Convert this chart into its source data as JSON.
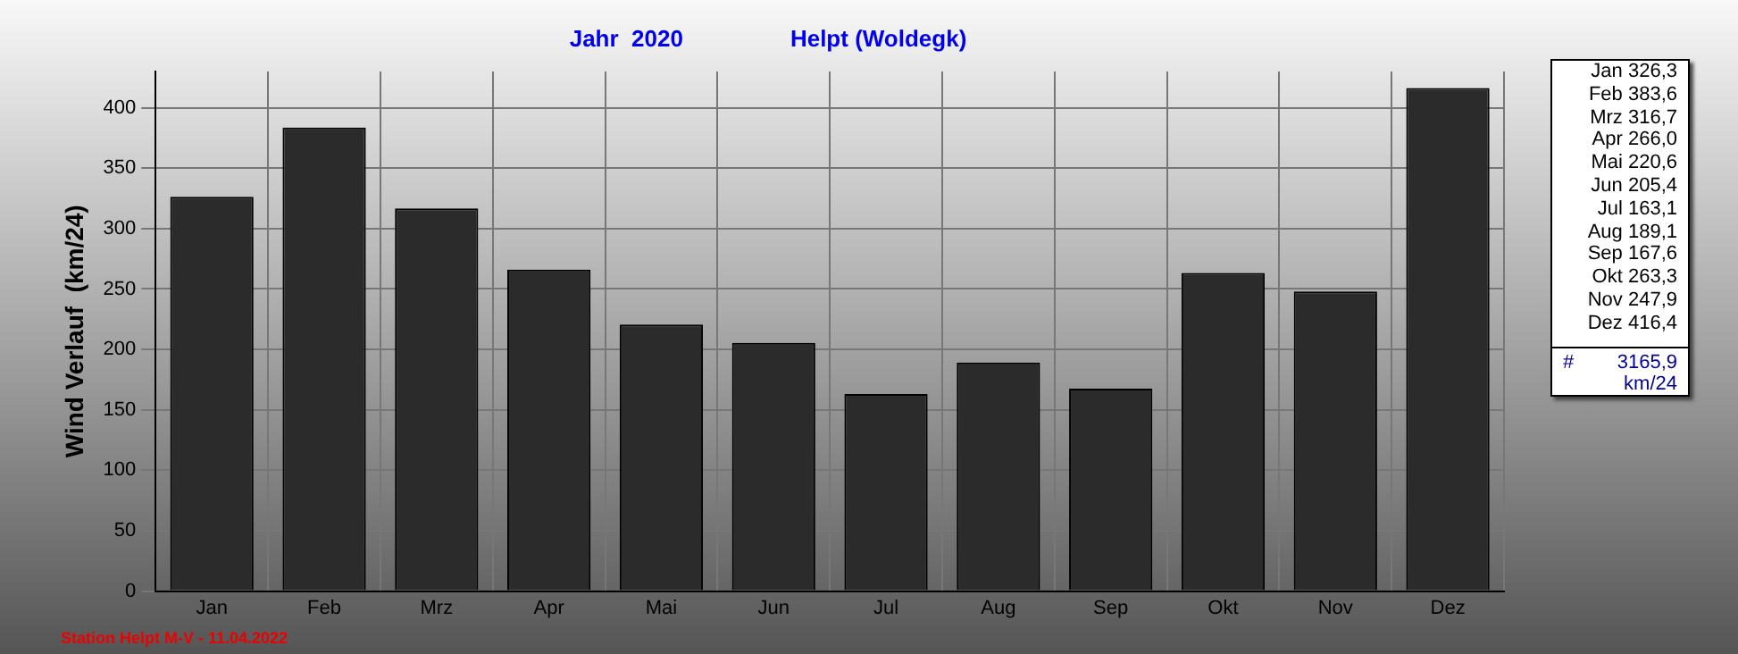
{
  "chart_data": {
    "type": "bar",
    "title": "Jahr  2020",
    "subtitle": "Helpt (Woldegk)",
    "ylabel": "Wind Verlauf  (km/24)",
    "categories": [
      "Jan",
      "Feb",
      "Mrz",
      "Apr",
      "Mai",
      "Jun",
      "Jul",
      "Aug",
      "Sep",
      "Okt",
      "Nov",
      "Dez"
    ],
    "values": [
      326.3,
      383.6,
      316.7,
      266.0,
      220.6,
      205.4,
      163.1,
      189.1,
      167.6,
      263.3,
      247.9,
      416.4
    ],
    "value_labels": [
      "326,3",
      "383,6",
      "316,7",
      "266,0",
      "220,6",
      "205,4",
      "163,1",
      "189,1",
      "167,6",
      "263,3",
      "247,9",
      "416,4"
    ],
    "color": "#2b2b2b",
    "ylim": [
      0,
      430
    ],
    "yticks": [
      0,
      50,
      100,
      150,
      200,
      250,
      300,
      350,
      400
    ],
    "grid": true,
    "annotations": [
      "# 3165,9 km/24",
      "Station Helpt M-V - 11.04.2022"
    ]
  }
}
